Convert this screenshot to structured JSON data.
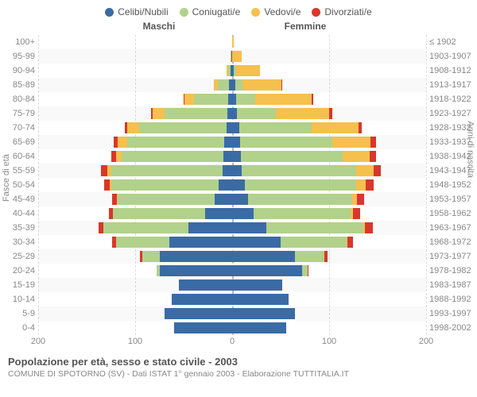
{
  "legend": [
    {
      "label": "Celibi/Nubili",
      "color": "#3b6ba5"
    },
    {
      "label": "Coniugati/e",
      "color": "#b2d18b"
    },
    {
      "label": "Vedovi/e",
      "color": "#f5c04e"
    },
    {
      "label": "Divorziati/e",
      "color": "#d9372b"
    }
  ],
  "headers": {
    "male": "Maschi",
    "female": "Femmine"
  },
  "y_title_left": "Fasce di età",
  "y_title_right": "Anni di nascita",
  "age_labels": [
    "100+",
    "95-99",
    "90-94",
    "85-89",
    "80-84",
    "75-79",
    "70-74",
    "65-69",
    "60-64",
    "55-59",
    "50-54",
    "45-49",
    "40-44",
    "35-39",
    "30-34",
    "25-29",
    "20-24",
    "15-19",
    "10-14",
    "5-9",
    "0-4"
  ],
  "year_labels": [
    "≤ 1902",
    "1903-1907",
    "1908-1912",
    "1913-1917",
    "1918-1922",
    "1923-1927",
    "1928-1932",
    "1933-1937",
    "1938-1942",
    "1943-1947",
    "1948-1952",
    "1953-1957",
    "1958-1962",
    "1963-1967",
    "1968-1972",
    "1973-1977",
    "1978-1982",
    "1983-1987",
    "1988-1992",
    "1993-1997",
    "1998-2002"
  ],
  "x_ticks": [
    200,
    100,
    0,
    100,
    200
  ],
  "x_max": 200,
  "rows": [
    {
      "m": [
        0,
        0,
        0,
        0
      ],
      "f": [
        0,
        0,
        2,
        0
      ]
    },
    {
      "m": [
        1,
        0,
        1,
        0
      ],
      "f": [
        0,
        0,
        10,
        0
      ]
    },
    {
      "m": [
        2,
        2,
        2,
        0
      ],
      "f": [
        2,
        2,
        25,
        0
      ]
    },
    {
      "m": [
        3,
        12,
        4,
        0
      ],
      "f": [
        3,
        8,
        40,
        1
      ]
    },
    {
      "m": [
        4,
        35,
        10,
        1
      ],
      "f": [
        4,
        20,
        58,
        2
      ]
    },
    {
      "m": [
        5,
        65,
        12,
        2
      ],
      "f": [
        5,
        40,
        55,
        3
      ]
    },
    {
      "m": [
        6,
        90,
        12,
        3
      ],
      "f": [
        7,
        75,
        48,
        4
      ]
    },
    {
      "m": [
        8,
        100,
        10,
        4
      ],
      "f": [
        8,
        95,
        40,
        5
      ]
    },
    {
      "m": [
        9,
        105,
        6,
        5
      ],
      "f": [
        9,
        105,
        28,
        6
      ]
    },
    {
      "m": [
        10,
        115,
        4,
        6
      ],
      "f": [
        10,
        118,
        18,
        7
      ]
    },
    {
      "m": [
        14,
        110,
        2,
        6
      ],
      "f": [
        13,
        115,
        10,
        8
      ]
    },
    {
      "m": [
        18,
        100,
        1,
        5
      ],
      "f": [
        16,
        108,
        5,
        7
      ]
    },
    {
      "m": [
        28,
        95,
        0,
        4
      ],
      "f": [
        22,
        100,
        3,
        7
      ]
    },
    {
      "m": [
        45,
        88,
        0,
        5
      ],
      "f": [
        35,
        100,
        2,
        8
      ]
    },
    {
      "m": [
        65,
        55,
        0,
        4
      ],
      "f": [
        50,
        68,
        1,
        6
      ]
    },
    {
      "m": [
        75,
        18,
        0,
        2
      ],
      "f": [
        65,
        30,
        0,
        3
      ]
    },
    {
      "m": [
        75,
        3,
        0,
        0
      ],
      "f": [
        72,
        6,
        0,
        1
      ]
    },
    {
      "m": [
        55,
        0,
        0,
        0
      ],
      "f": [
        52,
        0,
        0,
        0
      ]
    },
    {
      "m": [
        62,
        0,
        0,
        0
      ],
      "f": [
        58,
        0,
        0,
        0
      ]
    },
    {
      "m": [
        70,
        0,
        0,
        0
      ],
      "f": [
        65,
        0,
        0,
        0
      ]
    },
    {
      "m": [
        60,
        0,
        0,
        0
      ],
      "f": [
        56,
        0,
        0,
        0
      ]
    }
  ],
  "footer": {
    "title": "Popolazione per età, sesso e stato civile - 2003",
    "sub": "COMUNE DI SPOTORNO (SV) - Dati ISTAT 1° gennaio 2003 - Elaborazione TUTTITALIA.IT"
  },
  "colors": {
    "celibi": "#3b6ba5",
    "coniugati": "#b2d18b",
    "vedovi": "#f5c04e",
    "divorziati": "#d9372b"
  }
}
